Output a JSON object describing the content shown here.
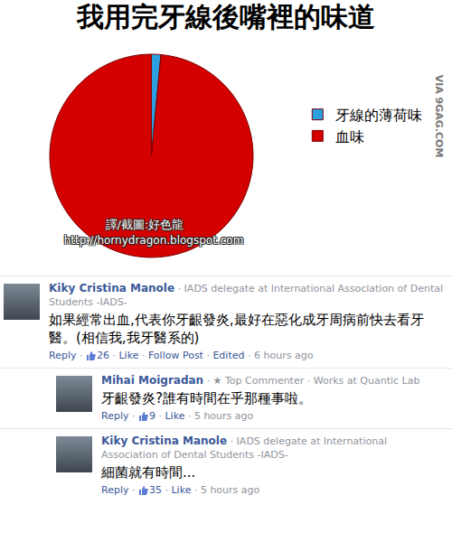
{
  "chart_data": {
    "type": "pie",
    "title": "我用完牙線後嘴裡的味道",
    "categories": [
      "牙線的薄荷味",
      "血味"
    ],
    "values": [
      1.5,
      98.5
    ],
    "colors": [
      "#2b9fe0",
      "#d40000"
    ],
    "legend": "right",
    "data_labels": false,
    "annotations": [
      "VIA 9GAG.COM",
      "譯/截圖:好色龍",
      "http://hornydragon.blogspot.com"
    ]
  },
  "separator": " · ",
  "comments": [
    {
      "name": "Kiky Cristina Manole",
      "meta": "· IADS delegate at International Association of Dental Students -IADS-",
      "text": "如果經常出血,代表你牙齦發炎,最好在惡化成牙周病前快去看牙醫。(相信我,我牙醫系的)",
      "footer": [
        "Reply",
        26,
        "Like",
        "Follow Post",
        "Edited",
        "6 hours ago"
      ],
      "reply": false
    },
    {
      "name": "Mihai Moigradan",
      "meta": "· ★ Top Commenter · Works at Quantic Lab",
      "text": "牙齦發炎?誰有時間在乎那種事啦。",
      "footer": [
        "Reply",
        9,
        "Like",
        "5 hours ago"
      ],
      "reply": true
    },
    {
      "name": "Kiky Cristina Manole",
      "meta": "· IADS delegate at International Association of Dental Students -IADS-",
      "text": "細菌就有時間...",
      "footer": [
        "Reply",
        35,
        "Like",
        "5 hours ago"
      ],
      "reply": true
    }
  ]
}
